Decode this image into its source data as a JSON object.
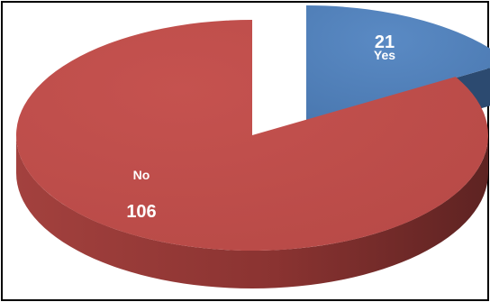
{
  "chart_data": {
    "type": "pie",
    "style": "3d-exploded",
    "legend": "none",
    "slices": [
      {
        "name": "Yes",
        "value": 21,
        "color": "#4f81bd",
        "exploded": true
      },
      {
        "name": "No",
        "value": 106,
        "color": "#c0504d",
        "exploded": false
      }
    ]
  }
}
